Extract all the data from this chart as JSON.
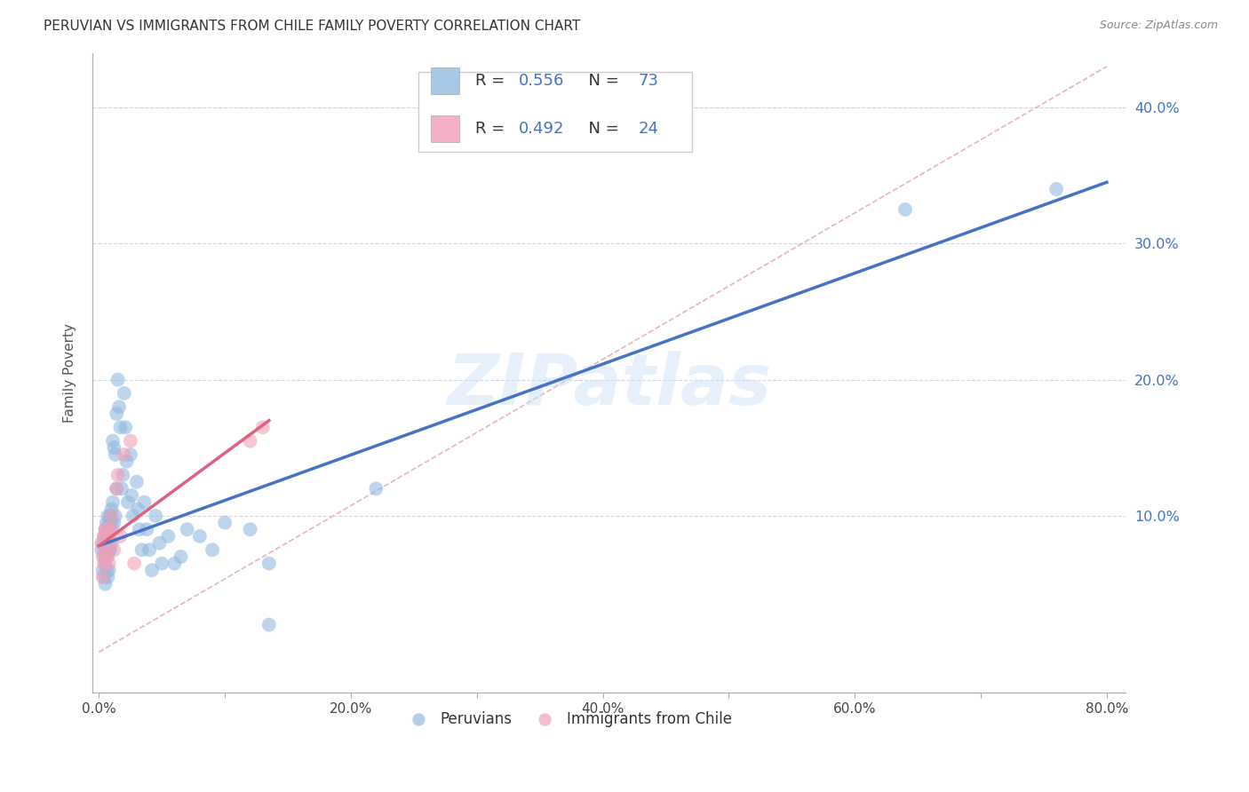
{
  "title": "PERUVIAN VS IMMIGRANTS FROM CHILE FAMILY POVERTY CORRELATION CHART",
  "source": "Source: ZipAtlas.com",
  "ylabel": "Family Poverty",
  "xlim": [
    -0.005,
    0.815
  ],
  "ylim": [
    -0.03,
    0.44
  ],
  "yticks": [
    0.0,
    0.1,
    0.2,
    0.3,
    0.4
  ],
  "ytick_labels": [
    "",
    "10.0%",
    "20.0%",
    "30.0%",
    "40.0%"
  ],
  "xticks": [
    0.0,
    0.1,
    0.2,
    0.3,
    0.4,
    0.5,
    0.6,
    0.7,
    0.8
  ],
  "xtick_labels": [
    "0.0%",
    "",
    "20.0%",
    "",
    "40.0%",
    "",
    "60.0%",
    "",
    "80.0%"
  ],
  "R_blue": 0.556,
  "N_blue": 73,
  "R_pink": 0.492,
  "N_pink": 24,
  "blue_color": "#4472c4",
  "pink_color": "#e06080",
  "blue_scatter_color": "#90b8e0",
  "pink_scatter_color": "#f0a0b8",
  "watermark": "ZIPatlas",
  "blue_line": {
    "x0": 0.0,
    "y0": 0.078,
    "x1": 0.8,
    "y1": 0.345
  },
  "pink_line": {
    "x0": 0.0,
    "y0": 0.078,
    "x1": 0.135,
    "y1": 0.17
  },
  "ref_line": {
    "x0": 0.0,
    "y0": 0.0,
    "x1": 0.8,
    "y1": 0.43
  },
  "peruvian_x": [
    0.002,
    0.003,
    0.003,
    0.004,
    0.004,
    0.004,
    0.005,
    0.005,
    0.005,
    0.005,
    0.006,
    0.006,
    0.006,
    0.006,
    0.007,
    0.007,
    0.007,
    0.007,
    0.007,
    0.008,
    0.008,
    0.008,
    0.008,
    0.009,
    0.009,
    0.009,
    0.01,
    0.01,
    0.01,
    0.011,
    0.011,
    0.012,
    0.012,
    0.013,
    0.013,
    0.014,
    0.014,
    0.015,
    0.016,
    0.017,
    0.018,
    0.019,
    0.02,
    0.021,
    0.022,
    0.023,
    0.025,
    0.026,
    0.027,
    0.03,
    0.031,
    0.032,
    0.034,
    0.036,
    0.038,
    0.04,
    0.042,
    0.045,
    0.048,
    0.05,
    0.055,
    0.06,
    0.065,
    0.07,
    0.08,
    0.09,
    0.1,
    0.12,
    0.135,
    0.135,
    0.22,
    0.64,
    0.76
  ],
  "peruvian_y": [
    0.075,
    0.08,
    0.06,
    0.085,
    0.07,
    0.055,
    0.09,
    0.08,
    0.065,
    0.05,
    0.095,
    0.085,
    0.075,
    0.06,
    0.1,
    0.09,
    0.08,
    0.07,
    0.055,
    0.095,
    0.085,
    0.075,
    0.06,
    0.1,
    0.09,
    0.075,
    0.105,
    0.095,
    0.08,
    0.155,
    0.11,
    0.15,
    0.095,
    0.145,
    0.1,
    0.175,
    0.12,
    0.2,
    0.18,
    0.165,
    0.12,
    0.13,
    0.19,
    0.165,
    0.14,
    0.11,
    0.145,
    0.115,
    0.1,
    0.125,
    0.105,
    0.09,
    0.075,
    0.11,
    0.09,
    0.075,
    0.06,
    0.1,
    0.08,
    0.065,
    0.085,
    0.065,
    0.07,
    0.09,
    0.085,
    0.075,
    0.095,
    0.09,
    0.065,
    0.02,
    0.12,
    0.325,
    0.34
  ],
  "chile_x": [
    0.002,
    0.003,
    0.003,
    0.004,
    0.004,
    0.005,
    0.005,
    0.006,
    0.006,
    0.007,
    0.008,
    0.008,
    0.009,
    0.01,
    0.011,
    0.012,
    0.014,
    0.015,
    0.017,
    0.02,
    0.025,
    0.028,
    0.12,
    0.13
  ],
  "chile_y": [
    0.08,
    0.07,
    0.055,
    0.085,
    0.065,
    0.09,
    0.075,
    0.085,
    0.07,
    0.09,
    0.085,
    0.065,
    0.08,
    0.1,
    0.09,
    0.075,
    0.12,
    0.13,
    0.085,
    0.145,
    0.155,
    0.065,
    0.155,
    0.165
  ]
}
